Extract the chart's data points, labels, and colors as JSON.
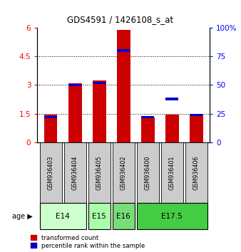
{
  "title": "GDS4591 / 1426108_s_at",
  "samples": [
    "GSM936403",
    "GSM936404",
    "GSM936405",
    "GSM936402",
    "GSM936400",
    "GSM936401",
    "GSM936406"
  ],
  "transformed_counts": [
    1.45,
    3.1,
    3.25,
    5.9,
    1.3,
    1.45,
    1.45
  ],
  "percentile_ranks_pct": [
    22,
    50,
    52,
    80,
    22,
    38,
    24
  ],
  "ylim_left": [
    0,
    6
  ],
  "ylim_right": [
    0,
    100
  ],
  "yticks_left": [
    0,
    1.5,
    3,
    4.5,
    6
  ],
  "yticks_right": [
    0,
    25,
    50,
    75,
    100
  ],
  "bar_color_red": "#cc0000",
  "bar_color_blue": "#0000cc",
  "bar_width": 0.55,
  "background_color": "#ffffff",
  "sample_box_color": "#cccccc",
  "age_groups": [
    {
      "label": "E14",
      "indices": [
        0,
        1
      ],
      "color": "#ccffcc"
    },
    {
      "label": "E15",
      "indices": [
        2
      ],
      "color": "#aaffaa"
    },
    {
      "label": "E16",
      "indices": [
        3
      ],
      "color": "#77dd77"
    },
    {
      "label": "E17.5",
      "indices": [
        4,
        5,
        6
      ],
      "color": "#44cc44"
    }
  ]
}
